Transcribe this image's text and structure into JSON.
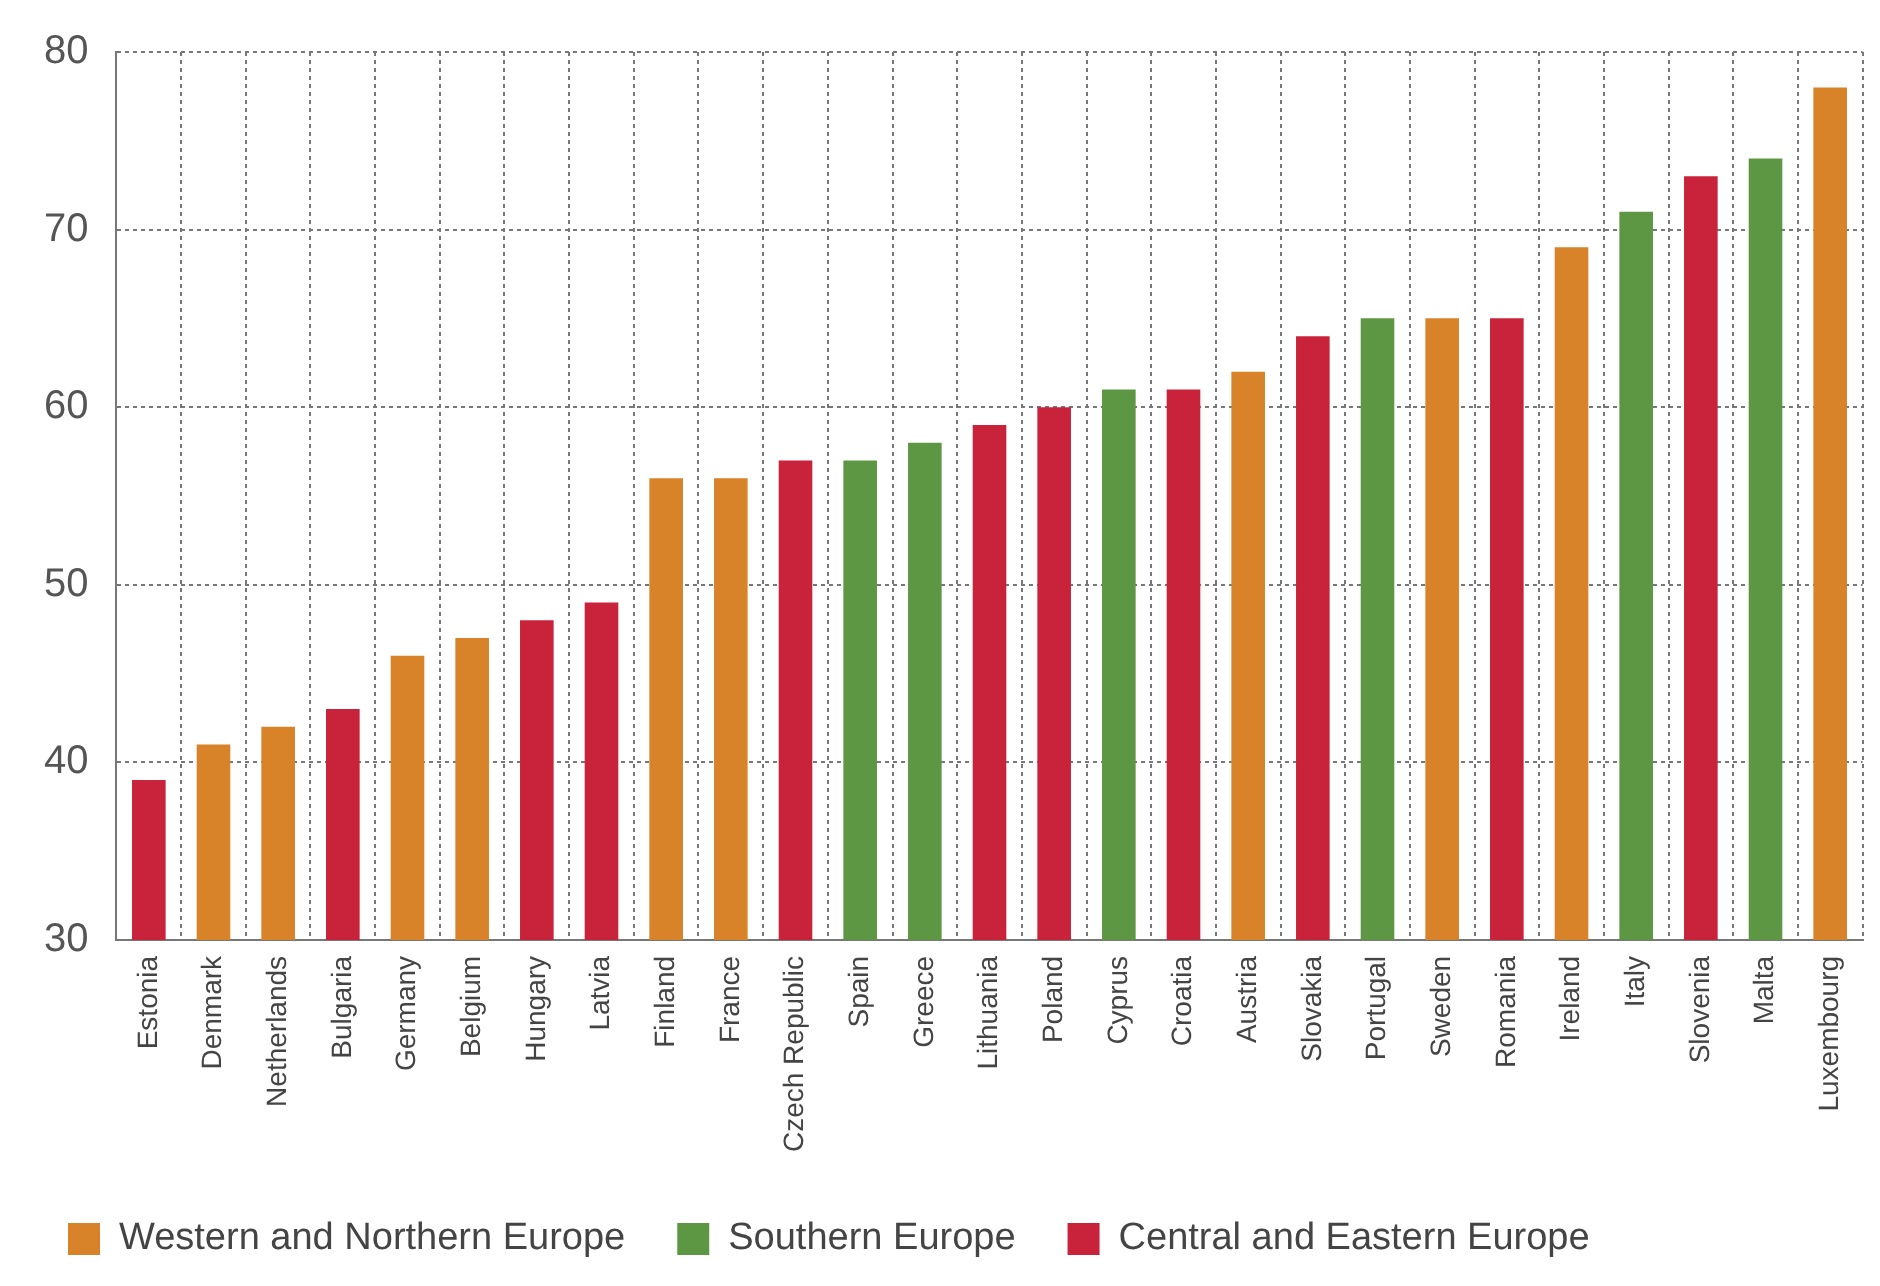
{
  "chart_data": {
    "type": "bar",
    "categories": [
      "Estonia",
      "Denmark",
      "Netherlands",
      "Bulgaria",
      "Germany",
      "Belgium",
      "Hungary",
      "Latvia",
      "Finland",
      "France",
      "Czech Republic",
      "Spain",
      "Greece",
      "Lithuania",
      "Poland",
      "Cyprus",
      "Croatia",
      "Austria",
      "Slovakia",
      "Portugal",
      "Sweden",
      "Romania",
      "Ireland",
      "Italy",
      "Slovenia",
      "Malta",
      "Luxembourg"
    ],
    "series": [
      {
        "name": "Western and Northern Europe",
        "color": "#d8832a",
        "values": [
          null,
          41,
          42,
          null,
          46,
          47,
          null,
          null,
          56,
          56,
          null,
          null,
          null,
          null,
          null,
          null,
          null,
          62,
          null,
          null,
          65,
          null,
          69,
          null,
          null,
          null,
          78
        ]
      },
      {
        "name": "Southern Europe",
        "color": "#5e9744",
        "values": [
          null,
          null,
          null,
          null,
          null,
          null,
          null,
          null,
          null,
          null,
          null,
          57,
          58,
          null,
          null,
          61,
          null,
          null,
          null,
          65,
          null,
          null,
          null,
          71,
          null,
          74,
          null
        ]
      },
      {
        "name": "Central and Eastern Europe",
        "color": "#c8233a",
        "values": [
          39,
          null,
          null,
          43,
          null,
          null,
          48,
          49,
          null,
          null,
          57,
          null,
          null,
          59,
          60,
          null,
          61,
          null,
          64,
          null,
          null,
          65,
          null,
          null,
          73,
          null,
          null
        ]
      }
    ],
    "ylim": [
      30,
      80
    ],
    "yticks": [
      30,
      40,
      50,
      60,
      70,
      80
    ],
    "grid": true,
    "legend": "bottom left"
  }
}
